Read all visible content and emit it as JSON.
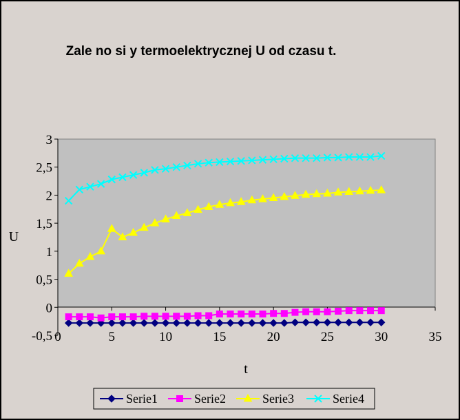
{
  "chart_data": {
    "type": "line",
    "title": "Zale  no     si y termoelektrycznej U od czasu t.",
    "xlabel": "t",
    "ylabel": "U",
    "xlim": [
      0,
      35
    ],
    "ylim": [
      -0.5,
      3
    ],
    "x_ticks": [
      "0",
      "5",
      "10",
      "15",
      "20",
      "25",
      "30",
      "35"
    ],
    "y_ticks": [
      "-0,5",
      "0",
      "0,5",
      "1",
      "1,5",
      "2",
      "2,5",
      "3"
    ],
    "grid": false,
    "legend_position": "bottom",
    "x": [
      1,
      2,
      3,
      4,
      5,
      6,
      7,
      8,
      9,
      10,
      11,
      12,
      13,
      14,
      15,
      16,
      17,
      18,
      19,
      20,
      21,
      22,
      23,
      24,
      25,
      26,
      27,
      28,
      29,
      30
    ],
    "series": [
      {
        "name": "Serie1",
        "color": "#000080",
        "marker": "diamond",
        "values": [
          -0.28,
          -0.28,
          -0.28,
          -0.28,
          -0.28,
          -0.28,
          -0.28,
          -0.28,
          -0.28,
          -0.28,
          -0.28,
          -0.28,
          -0.28,
          -0.28,
          -0.28,
          -0.28,
          -0.28,
          -0.28,
          -0.28,
          -0.28,
          -0.28,
          -0.27,
          -0.27,
          -0.27,
          -0.27,
          -0.27,
          -0.27,
          -0.27,
          -0.27,
          -0.27
        ]
      },
      {
        "name": "Serie2",
        "color": "#ff00ff",
        "marker": "square",
        "values": [
          -0.17,
          -0.17,
          -0.17,
          -0.19,
          -0.17,
          -0.17,
          -0.17,
          -0.16,
          -0.16,
          -0.16,
          -0.16,
          -0.16,
          -0.15,
          -0.15,
          -0.12,
          -0.12,
          -0.12,
          -0.12,
          -0.12,
          -0.11,
          -0.11,
          -0.09,
          -0.08,
          -0.08,
          -0.08,
          -0.07,
          -0.06,
          -0.06,
          -0.06,
          -0.06
        ]
      },
      {
        "name": "Serie3",
        "color": "#ffff00",
        "marker": "triangle",
        "values": [
          0.6,
          0.78,
          0.9,
          1.0,
          1.4,
          1.25,
          1.33,
          1.42,
          1.5,
          1.57,
          1.63,
          1.68,
          1.74,
          1.79,
          1.83,
          1.86,
          1.88,
          1.91,
          1.93,
          1.95,
          1.97,
          1.99,
          2.01,
          2.02,
          2.03,
          2.05,
          2.06,
          2.07,
          2.08,
          2.09
        ]
      },
      {
        "name": "Serie4",
        "color": "#00ffff",
        "marker": "x",
        "values": [
          1.9,
          2.1,
          2.15,
          2.2,
          2.28,
          2.32,
          2.36,
          2.4,
          2.45,
          2.47,
          2.5,
          2.53,
          2.56,
          2.58,
          2.59,
          2.6,
          2.61,
          2.62,
          2.63,
          2.64,
          2.65,
          2.66,
          2.66,
          2.66,
          2.67,
          2.67,
          2.68,
          2.68,
          2.68,
          2.7
        ]
      }
    ]
  }
}
